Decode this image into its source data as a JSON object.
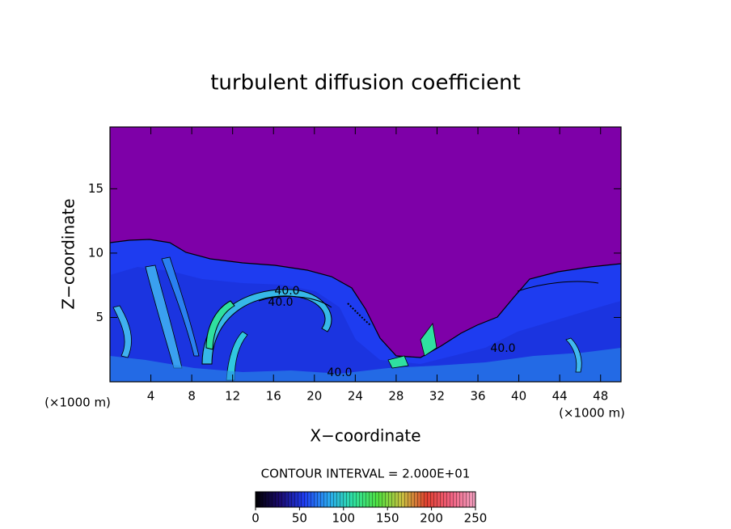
{
  "chart_data": {
    "type": "contour",
    "title": "turbulent diffusion coefficient",
    "x_label": "X−coordinate",
    "y_label": "Z−coordinate",
    "x_unit": "(×1000 m)",
    "y_unit": "(×1000 m)",
    "xlim": [
      0,
      50
    ],
    "xticks": [
      4,
      8,
      12,
      16,
      20,
      24,
      28,
      32,
      36,
      40,
      44,
      48
    ],
    "ylim": [
      0,
      19.8
    ],
    "yticks": [
      5,
      10,
      15
    ],
    "contour_labels": [
      {
        "value": 40,
        "label": "40.0"
      },
      {
        "value": 40,
        "label": "40.0"
      },
      {
        "value": 40,
        "label": "40.0"
      },
      {
        "value": 40,
        "label": "40.0"
      }
    ],
    "contour_interval_label": "CONTOUR INTERVAL = 2.000E+01",
    "colorbar": {
      "lim": [
        0,
        250
      ],
      "ticks": [
        0,
        50,
        100,
        150,
        200,
        250
      ],
      "colors": [
        "#000000",
        "#1a0a6e",
        "#1e3cf0",
        "#2aa8f0",
        "#2fe0a0",
        "#50e040",
        "#c8c040",
        "#e04030",
        "#f06080",
        "#f0a0c0"
      ]
    }
  }
}
